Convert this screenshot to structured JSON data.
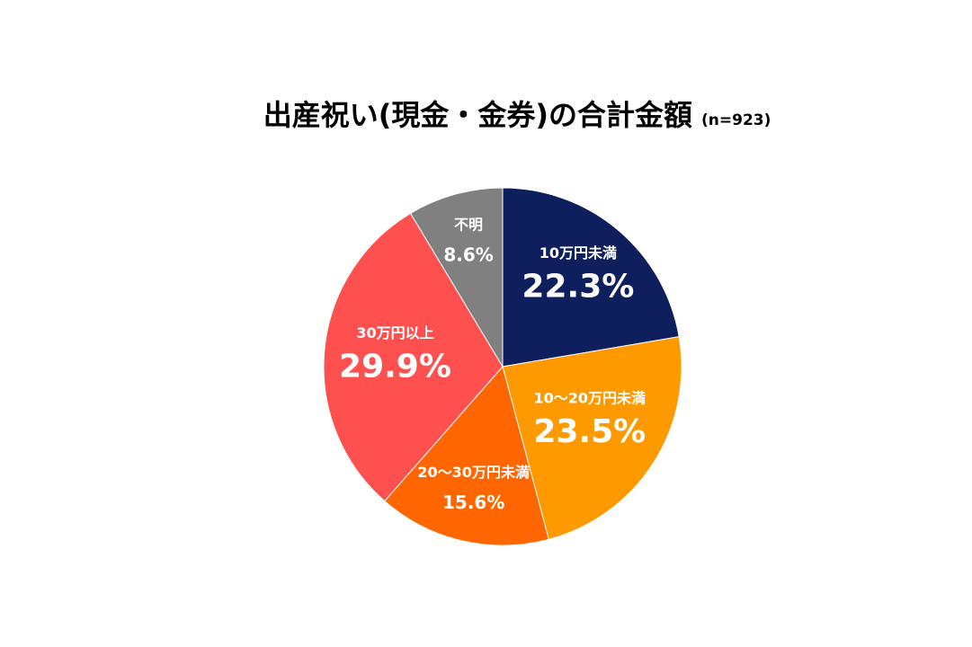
{
  "chart_data": {
    "type": "pie",
    "title": "出産祝い(現金・金券)の合計金額",
    "subtitle": "(n=923)",
    "categories": [
      "10万円未満",
      "10～20万円未満",
      "20～30万円未満",
      "30万円以上",
      "不明"
    ],
    "values": [
      22.3,
      23.5,
      15.6,
      29.9,
      8.6
    ],
    "value_labels": [
      "22.3%",
      "23.5%",
      "15.6%",
      "29.9%",
      "8.6%"
    ],
    "colors": [
      "#0d1f5c",
      "#ff9900",
      "#ff6600",
      "#ff5050",
      "#808080"
    ]
  }
}
